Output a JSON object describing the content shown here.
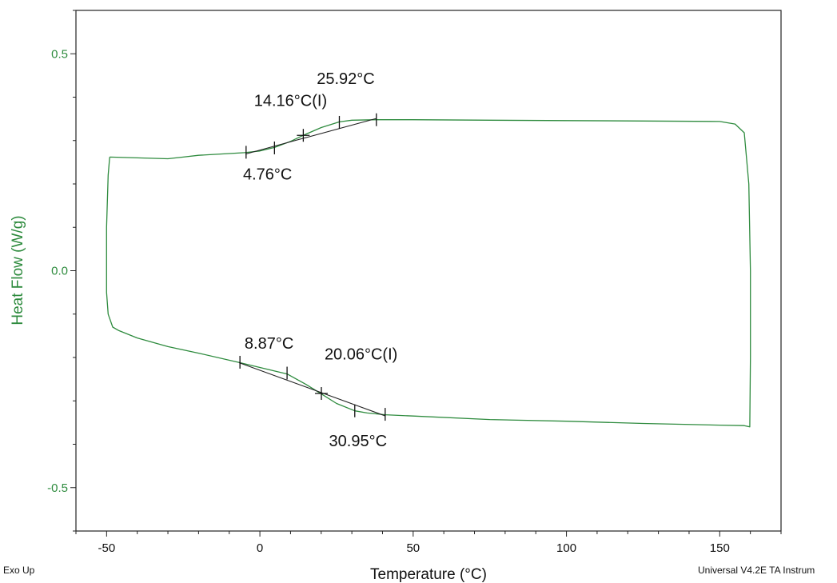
{
  "chart_data": {
    "type": "line",
    "xlabel": "Temperature (°C)",
    "ylabel": "Heat Flow (W/g)",
    "xlim": [
      -60,
      170
    ],
    "ylim": [
      -0.6,
      0.6
    ],
    "x_ticks": [
      -50,
      0,
      50,
      100,
      150
    ],
    "y_ticks": [
      0.5,
      0.0,
      -0.5
    ],
    "y_tick_labels": [
      "0.5",
      "0.0",
      "-0.5"
    ],
    "x_tick_labels": [
      "-50",
      "0",
      "50",
      "100",
      "150"
    ],
    "grid": false,
    "series": [
      {
        "color": "#2e8b3e",
        "points": [
          [
            -49,
            0.262
          ],
          [
            -40,
            0.26
          ],
          [
            -30,
            0.258
          ],
          [
            -25,
            0.262
          ],
          [
            -20,
            0.266
          ],
          [
            -10,
            0.27
          ],
          [
            -5,
            0.272
          ],
          [
            0,
            0.276
          ],
          [
            4.76,
            0.284
          ],
          [
            10,
            0.298
          ],
          [
            14.16,
            0.312
          ],
          [
            20,
            0.33
          ],
          [
            25.92,
            0.343
          ],
          [
            30,
            0.347
          ],
          [
            38,
            0.348
          ],
          [
            50,
            0.348
          ],
          [
            75,
            0.347
          ],
          [
            100,
            0.346
          ],
          [
            125,
            0.345
          ],
          [
            150,
            0.344
          ],
          [
            155,
            0.338
          ],
          [
            158,
            0.318
          ],
          [
            159.5,
            0.2
          ],
          [
            160,
            0.0
          ],
          [
            160,
            -0.2
          ],
          [
            159.8,
            -0.36
          ],
          [
            158,
            -0.357
          ],
          [
            150,
            -0.356
          ],
          [
            125,
            -0.352
          ],
          [
            100,
            -0.347
          ],
          [
            75,
            -0.343
          ],
          [
            50,
            -0.335
          ],
          [
            40.87,
            -0.332
          ],
          [
            35,
            -0.328
          ],
          [
            30.95,
            -0.323
          ],
          [
            25,
            -0.306
          ],
          [
            20.06,
            -0.284
          ],
          [
            15,
            -0.262
          ],
          [
            8.87,
            -0.238
          ],
          [
            0,
            -0.223
          ],
          [
            -6.5,
            -0.212
          ],
          [
            -20,
            -0.19
          ],
          [
            -30,
            -0.175
          ],
          [
            -40,
            -0.155
          ],
          [
            -46,
            -0.138
          ],
          [
            -48,
            -0.13
          ],
          [
            -49.5,
            -0.1
          ],
          [
            -50,
            -0.05
          ],
          [
            -50,
            0.1
          ],
          [
            -49.5,
            0.22
          ],
          [
            -49,
            0.262
          ]
        ]
      }
    ],
    "tangent_lines": [
      {
        "points": [
          [
            -4.7,
            0.269
          ],
          [
            38,
            0.351
          ]
        ]
      },
      {
        "points": [
          [
            -6.8,
            -0.212
          ],
          [
            41,
            -0.335
          ]
        ]
      }
    ],
    "markers": [
      {
        "x": -4.5,
        "y": 0.273
      },
      {
        "x": 4.76,
        "y": 0.283
      },
      {
        "x": 14.16,
        "y": 0.312
      },
      {
        "x": 25.92,
        "y": 0.342
      },
      {
        "x": 38,
        "y": 0.348
      },
      {
        "x": -6.5,
        "y": -0.211
      },
      {
        "x": 8.87,
        "y": -0.236
      },
      {
        "x": 20.06,
        "y": -0.283
      },
      {
        "x": 30.95,
        "y": -0.323
      },
      {
        "x": 40.87,
        "y": -0.331
      }
    ],
    "cross_markers": [
      {
        "x": 14.16,
        "y": 0.312
      },
      {
        "x": 20.06,
        "y": -0.283
      }
    ],
    "annotations": [
      {
        "text": "25.92°C",
        "x": 28,
        "y": 0.43
      },
      {
        "text": "14.16°C(I)",
        "x": 10,
        "y": 0.38
      },
      {
        "text": "4.76°C",
        "x": 2.5,
        "y": 0.21
      },
      {
        "text": "8.87°C",
        "x": 3,
        "y": -0.18
      },
      {
        "text": "20.06°C(I)",
        "x": 33,
        "y": -0.205
      },
      {
        "text": "30.95°C",
        "x": 32,
        "y": -0.405
      }
    ]
  },
  "footer": {
    "left": "Exo Up",
    "right": "Universal V4.2E TA Instrum"
  }
}
